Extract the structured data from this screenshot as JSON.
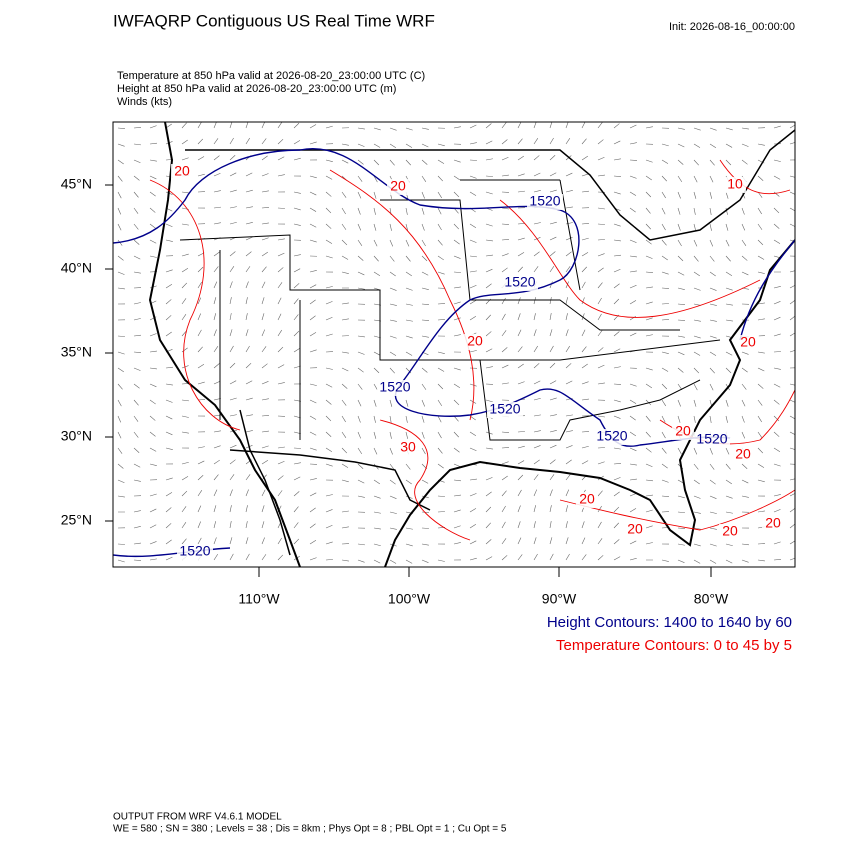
{
  "header": {
    "title": "IWFAQRP Contiguous US Real Time WRF",
    "init": "Init: 2026-08-16_00:00:00"
  },
  "fields": [
    "Temperature at 850 hPa valid at 2026-08-20_23:00:00 UTC   (C)",
    "Height at 850 hPa valid at 2026-08-20_23:00:00 UTC   (m)",
    "Winds   (kts)"
  ],
  "map": {
    "lat_labels": [
      "45°N",
      "40°N",
      "35°N",
      "30°N",
      "25°N"
    ],
    "lon_labels": [
      "110°W",
      "100°W",
      "90°W",
      "80°W"
    ],
    "height_labels": [
      "1520",
      "1520",
      "1520",
      "1520",
      "1520",
      "1520",
      "1520"
    ],
    "temp_labels": [
      "20",
      "20",
      "20",
      "20",
      "20",
      "20",
      "20",
      "20",
      "20",
      "20",
      "30",
      "10"
    ]
  },
  "legend": [
    "Height Contours: 1400 to 1640 by 60",
    "Temperature Contours: 0 to 45 by 5"
  ],
  "footer": [
    "OUTPUT FROM WRF V4.6.1 MODEL",
    "WE = 580 ; SN = 380 ; Levels = 38 ; Dis = 8km ; Phys Opt = 8 ; PBL Opt = 1 ; Cu Opt = 5"
  ]
}
